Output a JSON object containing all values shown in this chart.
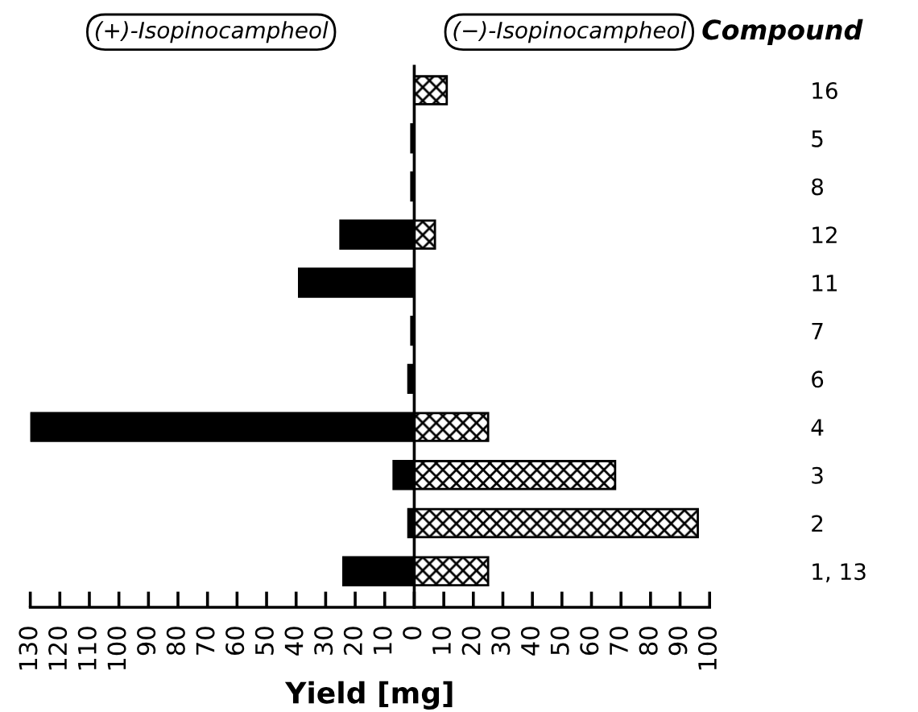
{
  "chart_data": {
    "type": "bar",
    "orientation": "horizontal",
    "xlabel": "Yield [mg]",
    "ylabel": "Compound",
    "categories": [
      "16",
      "5",
      "8",
      "12",
      "11",
      "7",
      "6",
      "4",
      "3",
      "2",
      "1, 13"
    ],
    "series": [
      {
        "name": "(+)-Isopinocampheol",
        "color": "#000000",
        "values": [
          null,
          -1,
          -1,
          -25,
          -39,
          -1,
          -2,
          -130,
          -7,
          -2,
          -24
        ]
      },
      {
        "name": "(−)-Isopinocampheol",
        "color": "#000000",
        "values": [
          11,
          null,
          null,
          7,
          null,
          null,
          null,
          25,
          68,
          96,
          25
        ]
      }
    ],
    "xlim": [
      -130,
      100
    ],
    "xticks": [
      {
        "value": -130,
        "label": "130"
      },
      {
        "value": -120,
        "label": "120"
      },
      {
        "value": -110,
        "label": "110"
      },
      {
        "value": -100,
        "label": "100"
      },
      {
        "value": -90,
        "label": "90"
      },
      {
        "value": -80,
        "label": "80"
      },
      {
        "value": -70,
        "label": "70"
      },
      {
        "value": -60,
        "label": "60"
      },
      {
        "value": -50,
        "label": "50"
      },
      {
        "value": -40,
        "label": "40"
      },
      {
        "value": -30,
        "label": "30"
      },
      {
        "value": -20,
        "label": "20"
      },
      {
        "value": -10,
        "label": "10"
      },
      0,
      10,
      20,
      30,
      40,
      50,
      60,
      70,
      80,
      90,
      100
    ],
    "legend": "top"
  }
}
